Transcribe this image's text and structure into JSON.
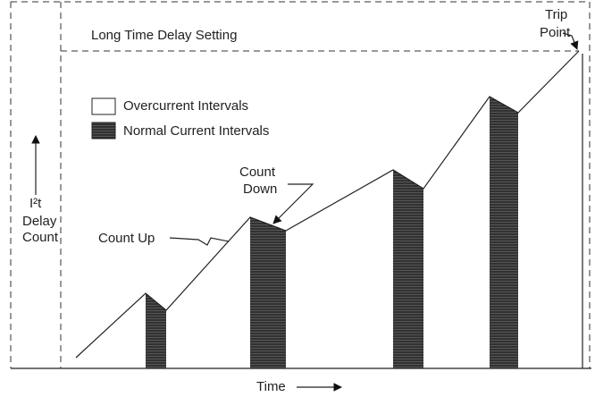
{
  "setting_label": "Long Time Delay Setting",
  "trip_point": [
    "Trip",
    "Point"
  ],
  "legend": {
    "overcurrent": "Overcurrent Intervals",
    "normal": "Normal Current Intervals"
  },
  "count_down": [
    "Count",
    "Down"
  ],
  "count_up": "Count Up",
  "y_label": [
    "I²t",
    "Delay",
    "Count"
  ],
  "x_label": "Time"
}
